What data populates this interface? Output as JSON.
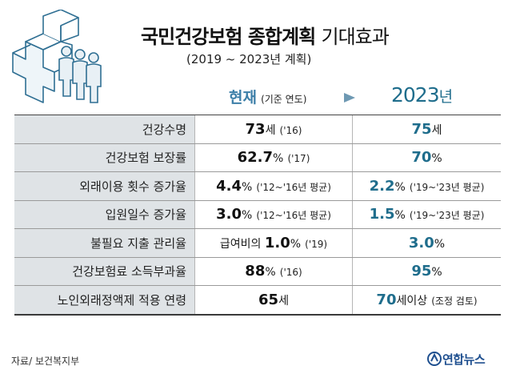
{
  "header": {
    "title_main": "국민건강보험 종합계획",
    "title_sub": "기대효과",
    "subtitle": "(2019 ~ 2023년 계획)",
    "col_now_label": "현재",
    "col_now_note": "(기준 연도)",
    "col_target_year": "2023",
    "col_target_unit": "년"
  },
  "rows": [
    {
      "label": "건강수명",
      "now_prefix": "",
      "now_value": "73",
      "now_unit": "세",
      "now_note": "('16)",
      "target_value": "75",
      "target_unit": "세",
      "target_note": ""
    },
    {
      "label": "건강보험 보장률",
      "now_prefix": "",
      "now_value": "62.7",
      "now_unit": "%",
      "now_note": "('17)",
      "target_value": "70",
      "target_unit": "%",
      "target_note": ""
    },
    {
      "label": "외래이용 횟수 증가율",
      "now_prefix": "",
      "now_value": "4.4",
      "now_unit": "%",
      "now_note": "('12~'16년 평균)",
      "target_value": "2.2",
      "target_unit": "%",
      "target_note": "('19~'23년 평균)"
    },
    {
      "label": "입원일수 증가율",
      "now_prefix": "",
      "now_value": "3.0",
      "now_unit": "%",
      "now_note": "('12~'16년 평균)",
      "target_value": "1.5",
      "target_unit": "%",
      "target_note": "('19~'23년 평균)"
    },
    {
      "label": "불필요 지출 관리율",
      "now_prefix": "급여비의 ",
      "now_value": "1.0",
      "now_unit": "%",
      "now_note": "('19)",
      "target_value": "3.0",
      "target_unit": "%",
      "target_note": ""
    },
    {
      "label": "건강보험료 소득부과율",
      "now_prefix": "",
      "now_value": "88",
      "now_unit": "%",
      "now_note": "('16)",
      "target_value": "95",
      "target_unit": "%",
      "target_note": ""
    },
    {
      "label": "노인외래정액제 적용 연령",
      "now_prefix": "",
      "now_value": "65",
      "now_unit": "세",
      "now_note": "",
      "target_value": "70",
      "target_unit": "세이상",
      "target_note": "(조정 검토)"
    }
  ],
  "footer": {
    "source": "자료/ 보건복지부",
    "brand": "연합뉴스"
  },
  "colors": {
    "accent": "#1f6d8c",
    "label_bg": "#dfe3e6",
    "arrow": "#6e99b3"
  }
}
